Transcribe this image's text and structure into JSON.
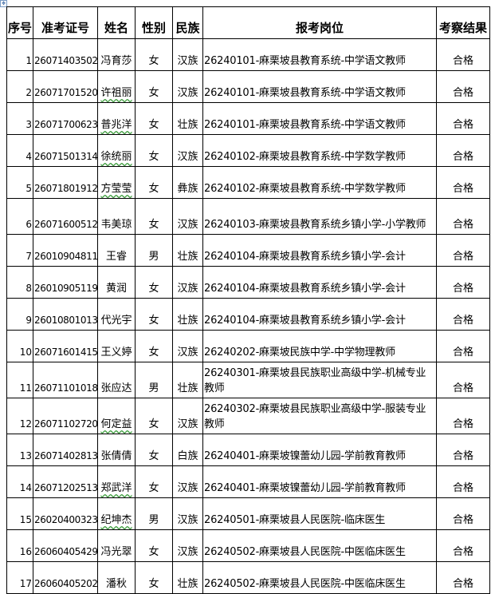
{
  "headers": {
    "seq": "序号",
    "id": "准考证号",
    "name": "姓名",
    "gender": "性别",
    "ethnicity": "民族",
    "position": "报考岗位",
    "result": "考察结果"
  },
  "rows": [
    {
      "seq": "1",
      "id": "26071403502",
      "name": "冯育莎",
      "gender": "女",
      "ethnicity": "汉族",
      "position": "26240101-麻栗坡县教育系统-中学语文教师",
      "result": "合格"
    },
    {
      "seq": "2",
      "id": "26071701520",
      "name": "许祖丽",
      "gender": "女",
      "ethnicity": "汉族",
      "position": "26240101-麻栗坡县教育系统-中学语文教师",
      "result": "合格"
    },
    {
      "seq": "3",
      "id": "26071700623",
      "name": "普兆洋",
      "gender": "女",
      "ethnicity": "壮族",
      "position": "26240101-麻栗坡县教育系统-中学语文教师",
      "result": "合格"
    },
    {
      "seq": "4",
      "id": "26071501314",
      "name": "徐统丽",
      "gender": "女",
      "ethnicity": "汉族",
      "position": "26240102-麻栗坡县教育系统-中学数学教师",
      "result": "合格"
    },
    {
      "seq": "5",
      "id": "26071801912",
      "name": "方莹莹",
      "gender": "女",
      "ethnicity": "彝族",
      "position": "26240102-麻栗坡县教育系统-中学数学教师",
      "result": "合格"
    },
    {
      "seq": "6",
      "id": "26071600512",
      "name": "韦美琼",
      "gender": "女",
      "ethnicity": "汉族",
      "position": "26240103-麻栗坡县教育系统乡镇小学-小学教师",
      "result": "合格"
    },
    {
      "seq": "7",
      "id": "26010904811",
      "name": "王睿",
      "gender": "男",
      "ethnicity": "壮族",
      "position": "26240104-麻栗坡县教育系统乡镇小学-会计",
      "result": "合格"
    },
    {
      "seq": "8",
      "id": "26010905119",
      "name": "黄润",
      "gender": "女",
      "ethnicity": "汉族",
      "position": "26240104-麻栗坡县教育系统乡镇小学-会计",
      "result": "合格"
    },
    {
      "seq": "9",
      "id": "26010801013",
      "name": "代光宇",
      "gender": "女",
      "ethnicity": "壮族",
      "position": "26240104-麻栗坡县教育系统乡镇小学-会计",
      "result": "合格"
    },
    {
      "seq": "10",
      "id": "26071601415",
      "name": "王义婷",
      "gender": "女",
      "ethnicity": "汉族",
      "position": "26240202-麻栗坡民族中学-中学物理教师",
      "result": "合格"
    },
    {
      "seq": "11",
      "id": "26071101018",
      "name": "张应达",
      "gender": "男",
      "ethnicity": "壮族",
      "position": "26240301-麻栗坡县民族职业高级中学-机械专业教师",
      "result": "合格"
    },
    {
      "seq": "12",
      "id": "26071102720",
      "name": "何定益",
      "gender": "女",
      "ethnicity": "汉族",
      "position": "26240302-麻栗坡县民族职业高级中学-服装专业教师",
      "result": "合格"
    },
    {
      "seq": "13",
      "id": "26071402813",
      "name": "张倩倩",
      "gender": "女",
      "ethnicity": "白族",
      "position": "26240401-麻栗坡镍蕾幼儿园-学前教育教师",
      "result": "合格"
    },
    {
      "seq": "14",
      "id": "26071202513",
      "name": "郑武洋",
      "gender": "女",
      "ethnicity": "汉族",
      "position": "26240401-麻栗坡镍蕾幼儿园-学前教育教师",
      "result": "合格"
    },
    {
      "seq": "15",
      "id": "26020400323",
      "name": "纪坤杰",
      "gender": "男",
      "ethnicity": "汉族",
      "position": "26240501-麻栗坡县人民医院-临床医生",
      "result": "合格"
    },
    {
      "seq": "16",
      "id": "26060405429",
      "name": "冯光翠",
      "gender": "女",
      "ethnicity": "汉族",
      "position": "26240502-麻栗坡县人民医院-中医临床医生",
      "result": "合格"
    },
    {
      "seq": "17",
      "id": "26060405202",
      "name": "潘秋",
      "gender": "女",
      "ethnicity": "壮族",
      "position": "26240502-麻栗坡县人民医院-中医临床医生",
      "result": "合格"
    }
  ]
}
